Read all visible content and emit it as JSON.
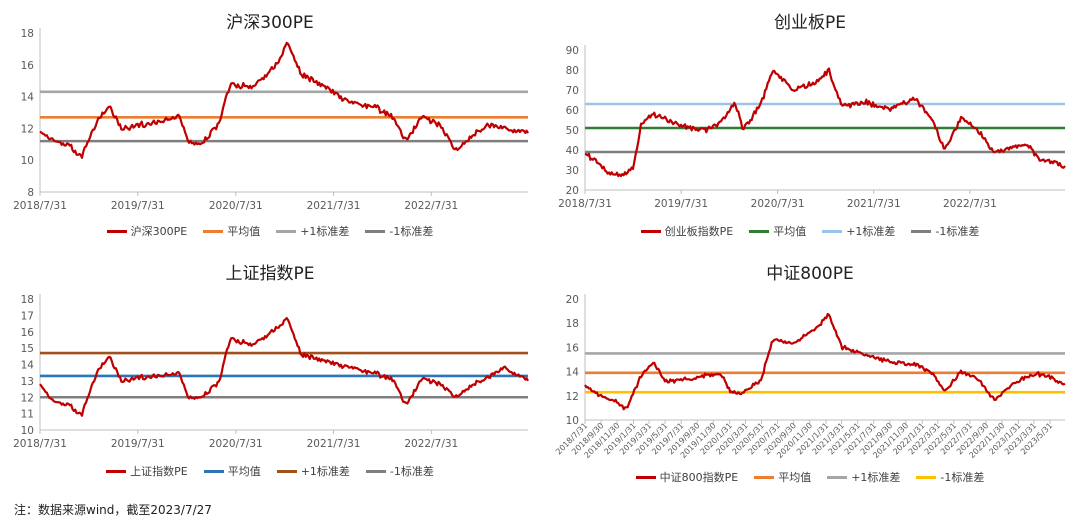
{
  "footnote": "注：数据来源wind，截至2023/7/27",
  "chart_data": [
    {
      "id": "hs300",
      "type": "line",
      "title": "沪深300PE",
      "ylim": [
        8,
        18
      ],
      "yticks": [
        8,
        10,
        12,
        14,
        16,
        18
      ],
      "xrange": [
        "2018-07-31",
        "2023-07-27"
      ],
      "xticks": [
        "2018/7/31",
        "2019/7/31",
        "2020/7/31",
        "2021/7/31",
        "2022/7/31"
      ],
      "series": [
        {
          "name": "沪深300PE",
          "color": "#C00000",
          "x": [
            "2018-07-31",
            "2018-09-15",
            "2018-11-15",
            "2019-01-03",
            "2019-02-28",
            "2019-04-15",
            "2019-05-31",
            "2019-07-31",
            "2019-10-15",
            "2019-12-31",
            "2020-02-03",
            "2020-03-23",
            "2020-05-31",
            "2020-07-10",
            "2020-09-30",
            "2020-12-31",
            "2021-02-10",
            "2021-03-31",
            "2021-06-30",
            "2021-09-30",
            "2021-12-31",
            "2022-03-15",
            "2022-04-26",
            "2022-06-30",
            "2022-08-31",
            "2022-10-31",
            "2022-12-31",
            "2023-02-28",
            "2023-04-30",
            "2023-07-27"
          ],
          "values": [
            11.8,
            11.3,
            10.9,
            10.2,
            12.4,
            13.4,
            12.0,
            12.2,
            12.4,
            12.8,
            11.2,
            10.9,
            12.4,
            14.8,
            14.6,
            16.0,
            17.4,
            15.4,
            14.6,
            13.6,
            13.4,
            12.6,
            11.2,
            12.8,
            12.2,
            10.6,
            11.6,
            12.2,
            12.0,
            11.7
          ]
        }
      ],
      "hlines": [
        {
          "name": "平均值",
          "value": 12.7,
          "color": "#ED7D31"
        },
        {
          "name": "+1标准差",
          "value": 14.3,
          "color": "#A6A6A6"
        },
        {
          "name": "-1标准差",
          "value": 11.2,
          "color": "#7F7F7F"
        }
      ]
    },
    {
      "id": "cyb",
      "type": "line",
      "title": "创业板PE",
      "ylim": [
        20,
        90
      ],
      "yticks": [
        20,
        30,
        40,
        50,
        60,
        70,
        80,
        90
      ],
      "xrange": [
        "2018-07-31",
        "2023-07-27"
      ],
      "xticks": [
        "2018/7/31",
        "2019/7/31",
        "2020/7/31",
        "2021/7/31",
        "2022/7/31"
      ],
      "series": [
        {
          "name": "创业板指数PE",
          "color": "#C00000",
          "x": [
            "2018-07-31",
            "2018-09-15",
            "2018-10-31",
            "2018-12-31",
            "2019-01-31",
            "2019-02-28",
            "2019-04-15",
            "2019-07-31",
            "2019-10-31",
            "2019-12-31",
            "2020-02-20",
            "2020-03-23",
            "2020-05-31",
            "2020-07-13",
            "2020-09-30",
            "2020-12-31",
            "2021-02-10",
            "2021-03-31",
            "2021-06-30",
            "2021-09-30",
            "2021-12-31",
            "2022-03-15",
            "2022-04-26",
            "2022-06-30",
            "2022-08-31",
            "2022-10-31",
            "2022-12-31",
            "2023-02-28",
            "2023-04-30",
            "2023-07-27"
          ],
          "values": [
            38,
            34,
            28,
            28,
            31,
            52,
            58,
            52,
            50,
            54,
            64,
            50,
            64,
            80,
            70,
            74,
            80,
            62,
            64,
            60,
            66,
            54,
            40,
            56,
            50,
            39,
            41,
            43,
            35,
            32
          ]
        }
      ],
      "hlines": [
        {
          "name": "平均值",
          "value": 51,
          "color": "#2E7D32"
        },
        {
          "name": "+1标准差",
          "value": 63,
          "color": "#9DC3E6"
        },
        {
          "name": "-1标准差",
          "value": 39,
          "color": "#7F7F7F"
        }
      ]
    },
    {
      "id": "sz",
      "type": "line",
      "title": "上证指数PE",
      "ylim": [
        10,
        18
      ],
      "yticks": [
        10,
        11,
        12,
        13,
        14,
        15,
        16,
        17,
        18
      ],
      "xrange": [
        "2018-07-31",
        "2023-07-27"
      ],
      "xticks": [
        "2018/7/31",
        "2019/7/31",
        "2020/7/31",
        "2021/7/31",
        "2022/7/31"
      ],
      "series": [
        {
          "name": "上证指数PE",
          "color": "#C00000",
          "x": [
            "2018-07-31",
            "2018-09-15",
            "2018-11-15",
            "2019-01-03",
            "2019-02-28",
            "2019-04-15",
            "2019-05-31",
            "2019-07-31",
            "2019-10-15",
            "2019-12-31",
            "2020-02-03",
            "2020-03-23",
            "2020-05-31",
            "2020-07-10",
            "2020-09-30",
            "2020-12-31",
            "2021-02-10",
            "2021-03-31",
            "2021-06-30",
            "2021-09-30",
            "2021-12-31",
            "2022-03-15",
            "2022-04-26",
            "2022-06-30",
            "2022-08-31",
            "2022-10-31",
            "2022-12-31",
            "2023-02-28",
            "2023-04-30",
            "2023-07-27"
          ],
          "values": [
            12.8,
            11.8,
            11.5,
            10.9,
            13.5,
            14.5,
            13.0,
            13.2,
            13.3,
            13.5,
            12.0,
            11.9,
            13.0,
            15.6,
            15.2,
            16.2,
            16.8,
            14.6,
            14.2,
            13.8,
            13.5,
            13.0,
            11.5,
            13.2,
            12.8,
            12.0,
            12.8,
            13.2,
            13.8,
            13.0
          ]
        }
      ],
      "hlines": [
        {
          "name": "平均值",
          "value": 13.3,
          "color": "#2E75B6"
        },
        {
          "name": "+1标准差",
          "value": 14.7,
          "color": "#A0521E"
        },
        {
          "name": "-1标准差",
          "value": 12.0,
          "color": "#7F7F7F"
        }
      ]
    },
    {
      "id": "zz800",
      "type": "line",
      "title": "中证800PE",
      "ylim": [
        10,
        20
      ],
      "yticks": [
        10,
        12,
        14,
        16,
        18,
        20
      ],
      "xrange": [
        "2018-07-31",
        "2023-07-27"
      ],
      "xticks": [
        "2018/7/31",
        "2018/9/30",
        "2018/11/30",
        "2019/1/31",
        "2019/3/31",
        "2019/5/31",
        "2019/7/31",
        "2019/9/30",
        "2019/11/30",
        "2020/1/31",
        "2020/3/31",
        "2020/5/31",
        "2020/7/31",
        "2020/9/30",
        "2020/11/30",
        "2021/1/31",
        "2021/3/31",
        "2021/5/31",
        "2021/7/31",
        "2021/9/30",
        "2021/11/30",
        "2022/1/31",
        "2022/3/31",
        "2022/5/31",
        "2022/7/31",
        "2022/9/30",
        "2022/11/30",
        "2023/1/31",
        "2023/3/31",
        "2023/5/31"
      ],
      "series": [
        {
          "name": "中证800指数PE",
          "color": "#C00000",
          "x": [
            "2018-07-31",
            "2018-09-15",
            "2018-11-15",
            "2019-01-03",
            "2019-02-28",
            "2019-04-15",
            "2019-05-31",
            "2019-07-31",
            "2019-10-15",
            "2019-12-31",
            "2020-02-03",
            "2020-03-23",
            "2020-05-31",
            "2020-07-10",
            "2020-09-30",
            "2020-12-31",
            "2021-02-10",
            "2021-03-31",
            "2021-06-30",
            "2021-09-30",
            "2021-12-31",
            "2022-03-15",
            "2022-04-26",
            "2022-06-30",
            "2022-08-31",
            "2022-10-31",
            "2022-12-31",
            "2023-02-28",
            "2023-04-30",
            "2023-07-27"
          ],
          "values": [
            12.9,
            12.2,
            11.6,
            10.9,
            13.6,
            14.8,
            13.2,
            13.3,
            13.6,
            13.8,
            12.4,
            12.2,
            13.4,
            16.6,
            16.4,
            17.6,
            18.8,
            16.0,
            15.4,
            14.8,
            14.6,
            13.8,
            12.4,
            14.0,
            13.4,
            11.6,
            12.8,
            13.6,
            13.8,
            13.0
          ]
        }
      ],
      "hlines": [
        {
          "name": "平均值",
          "value": 13.9,
          "color": "#ED7D31"
        },
        {
          "name": "+1标准差",
          "value": 15.5,
          "color": "#A6A6A6"
        },
        {
          "name": "-1标准差",
          "value": 12.3,
          "color": "#FFC000"
        }
      ]
    }
  ]
}
